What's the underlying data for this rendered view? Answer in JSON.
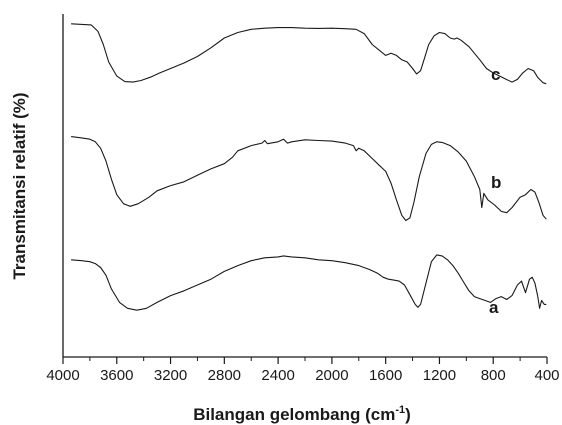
{
  "chart_data": {
    "type": "line",
    "xlabel": "Bilangan gelombang (cm",
    "xlabel_superscript": "-1",
    "xlabel_close": ")",
    "ylabel": "Transmitansi relatif (%)",
    "xlim": [
      4000,
      400
    ],
    "x_reversed": true,
    "y_ticks_labeled": false,
    "grid": false,
    "line_color": "#1a1a1a",
    "x_ticks": [
      4000,
      3600,
      3200,
      2800,
      2400,
      2000,
      1600,
      1200,
      800,
      400
    ],
    "series": [
      {
        "name": "c",
        "points": [
          [
            3940,
            0.91
          ],
          [
            3790,
            0.9
          ],
          [
            3740,
            0.84
          ],
          [
            3700,
            0.72
          ],
          [
            3660,
            0.56
          ],
          [
            3600,
            0.43
          ],
          [
            3540,
            0.38
          ],
          [
            3480,
            0.375
          ],
          [
            3420,
            0.39
          ],
          [
            3350,
            0.42
          ],
          [
            3280,
            0.46
          ],
          [
            3200,
            0.5
          ],
          [
            3100,
            0.55
          ],
          [
            3000,
            0.61
          ],
          [
            2900,
            0.69
          ],
          [
            2800,
            0.78
          ],
          [
            2700,
            0.83
          ],
          [
            2600,
            0.86
          ],
          [
            2500,
            0.87
          ],
          [
            2400,
            0.875
          ],
          [
            2300,
            0.875
          ],
          [
            2200,
            0.87
          ],
          [
            2100,
            0.868
          ],
          [
            2000,
            0.87
          ],
          [
            1900,
            0.865
          ],
          [
            1820,
            0.86
          ],
          [
            1760,
            0.82
          ],
          [
            1700,
            0.72
          ],
          [
            1640,
            0.66
          ],
          [
            1600,
            0.62
          ],
          [
            1560,
            0.64
          ],
          [
            1520,
            0.62
          ],
          [
            1480,
            0.58
          ],
          [
            1440,
            0.56
          ],
          [
            1400,
            0.5
          ],
          [
            1370,
            0.45
          ],
          [
            1340,
            0.48
          ],
          [
            1310,
            0.6
          ],
          [
            1280,
            0.72
          ],
          [
            1240,
            0.8
          ],
          [
            1200,
            0.83
          ],
          [
            1160,
            0.82
          ],
          [
            1120,
            0.78
          ],
          [
            1090,
            0.77
          ],
          [
            1070,
            0.78
          ],
          [
            1040,
            0.76
          ],
          [
            980,
            0.7
          ],
          [
            900,
            0.58
          ],
          [
            850,
            0.5
          ],
          [
            800,
            0.46
          ],
          [
            720,
            0.41
          ],
          [
            660,
            0.375
          ],
          [
            620,
            0.4
          ],
          [
            580,
            0.46
          ],
          [
            540,
            0.5
          ],
          [
            500,
            0.48
          ],
          [
            470,
            0.42
          ],
          [
            430,
            0.37
          ],
          [
            405,
            0.36
          ]
        ]
      },
      {
        "name": "b",
        "points": [
          [
            3940,
            0.91
          ],
          [
            3860,
            0.9
          ],
          [
            3800,
            0.89
          ],
          [
            3760,
            0.87
          ],
          [
            3720,
            0.82
          ],
          [
            3680,
            0.72
          ],
          [
            3640,
            0.58
          ],
          [
            3600,
            0.46
          ],
          [
            3550,
            0.39
          ],
          [
            3500,
            0.37
          ],
          [
            3440,
            0.39
          ],
          [
            3360,
            0.44
          ],
          [
            3300,
            0.49
          ],
          [
            3200,
            0.53
          ],
          [
            3100,
            0.56
          ],
          [
            3000,
            0.61
          ],
          [
            2900,
            0.66
          ],
          [
            2800,
            0.7
          ],
          [
            2740,
            0.75
          ],
          [
            2700,
            0.8
          ],
          [
            2600,
            0.84
          ],
          [
            2520,
            0.86
          ],
          [
            2500,
            0.88
          ],
          [
            2480,
            0.855
          ],
          [
            2400,
            0.87
          ],
          [
            2360,
            0.89
          ],
          [
            2330,
            0.86
          ],
          [
            2300,
            0.87
          ],
          [
            2200,
            0.885
          ],
          [
            2100,
            0.88
          ],
          [
            2000,
            0.875
          ],
          [
            1900,
            0.86
          ],
          [
            1840,
            0.84
          ],
          [
            1820,
            0.8
          ],
          [
            1800,
            0.82
          ],
          [
            1760,
            0.8
          ],
          [
            1700,
            0.74
          ],
          [
            1640,
            0.68
          ],
          [
            1600,
            0.64
          ],
          [
            1560,
            0.55
          ],
          [
            1520,
            0.42
          ],
          [
            1480,
            0.3
          ],
          [
            1450,
            0.26
          ],
          [
            1420,
            0.28
          ],
          [
            1390,
            0.4
          ],
          [
            1350,
            0.6
          ],
          [
            1300,
            0.78
          ],
          [
            1260,
            0.85
          ],
          [
            1220,
            0.87
          ],
          [
            1180,
            0.865
          ],
          [
            1120,
            0.84
          ],
          [
            1060,
            0.79
          ],
          [
            1000,
            0.72
          ],
          [
            940,
            0.6
          ],
          [
            900,
            0.5
          ],
          [
            885,
            0.36
          ],
          [
            870,
            0.47
          ],
          [
            840,
            0.42
          ],
          [
            790,
            0.38
          ],
          [
            740,
            0.33
          ],
          [
            700,
            0.32
          ],
          [
            660,
            0.36
          ],
          [
            600,
            0.44
          ],
          [
            560,
            0.46
          ],
          [
            520,
            0.5
          ],
          [
            490,
            0.48
          ],
          [
            460,
            0.4
          ],
          [
            430,
            0.3
          ],
          [
            405,
            0.27
          ]
        ]
      },
      {
        "name": "a",
        "points": [
          [
            3940,
            0.92
          ],
          [
            3860,
            0.91
          ],
          [
            3800,
            0.9
          ],
          [
            3760,
            0.88
          ],
          [
            3720,
            0.84
          ],
          [
            3680,
            0.76
          ],
          [
            3640,
            0.62
          ],
          [
            3580,
            0.48
          ],
          [
            3520,
            0.42
          ],
          [
            3450,
            0.4
          ],
          [
            3380,
            0.42
          ],
          [
            3300,
            0.48
          ],
          [
            3200,
            0.55
          ],
          [
            3100,
            0.6
          ],
          [
            3000,
            0.66
          ],
          [
            2900,
            0.72
          ],
          [
            2800,
            0.8
          ],
          [
            2700,
            0.86
          ],
          [
            2600,
            0.91
          ],
          [
            2500,
            0.94
          ],
          [
            2400,
            0.95
          ],
          [
            2360,
            0.96
          ],
          [
            2300,
            0.95
          ],
          [
            2200,
            0.94
          ],
          [
            2100,
            0.92
          ],
          [
            2000,
            0.91
          ],
          [
            1900,
            0.89
          ],
          [
            1800,
            0.86
          ],
          [
            1720,
            0.82
          ],
          [
            1660,
            0.78
          ],
          [
            1620,
            0.74
          ],
          [
            1580,
            0.72
          ],
          [
            1540,
            0.71
          ],
          [
            1500,
            0.7
          ],
          [
            1460,
            0.66
          ],
          [
            1420,
            0.56
          ],
          [
            1380,
            0.46
          ],
          [
            1360,
            0.43
          ],
          [
            1340,
            0.46
          ],
          [
            1300,
            0.68
          ],
          [
            1260,
            0.9
          ],
          [
            1220,
            0.97
          ],
          [
            1180,
            0.96
          ],
          [
            1140,
            0.92
          ],
          [
            1100,
            0.86
          ],
          [
            1060,
            0.78
          ],
          [
            1020,
            0.69
          ],
          [
            980,
            0.6
          ],
          [
            940,
            0.54
          ],
          [
            900,
            0.52
          ],
          [
            860,
            0.5
          ],
          [
            820,
            0.48
          ],
          [
            780,
            0.52
          ],
          [
            740,
            0.54
          ],
          [
            700,
            0.51
          ],
          [
            660,
            0.55
          ],
          [
            620,
            0.66
          ],
          [
            590,
            0.7
          ],
          [
            560,
            0.58
          ],
          [
            530,
            0.72
          ],
          [
            510,
            0.74
          ],
          [
            490,
            0.68
          ],
          [
            470,
            0.55
          ],
          [
            455,
            0.42
          ],
          [
            440,
            0.5
          ],
          [
            420,
            0.46
          ],
          [
            405,
            0.46
          ]
        ]
      }
    ]
  }
}
